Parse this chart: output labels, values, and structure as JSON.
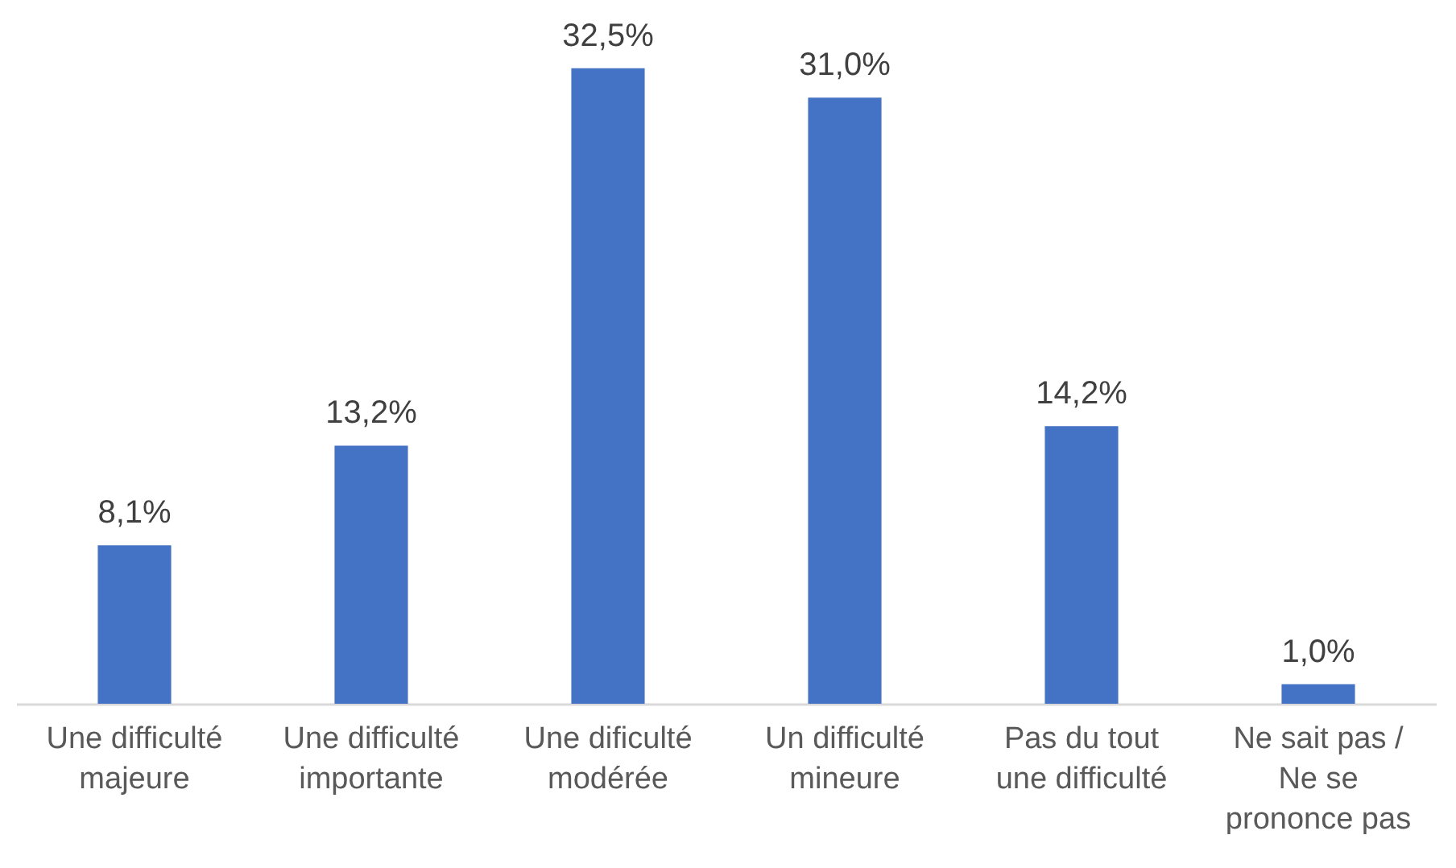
{
  "chart_data": {
    "type": "bar",
    "categories": [
      "Une difficulté majeure",
      "Une difficulté importante",
      "Une dificulté modérée",
      "Un difficulté mineure",
      "Pas du tout une difficulté",
      "Ne sait pas / Ne se prononce pas"
    ],
    "values": [
      8.1,
      13.2,
      32.5,
      31.0,
      14.2,
      1.0
    ],
    "value_labels": [
      "8,1%",
      "13,2%",
      "32,5%",
      "31,0%",
      "14,2%",
      "1,0%"
    ],
    "color": "#4472c4"
  }
}
